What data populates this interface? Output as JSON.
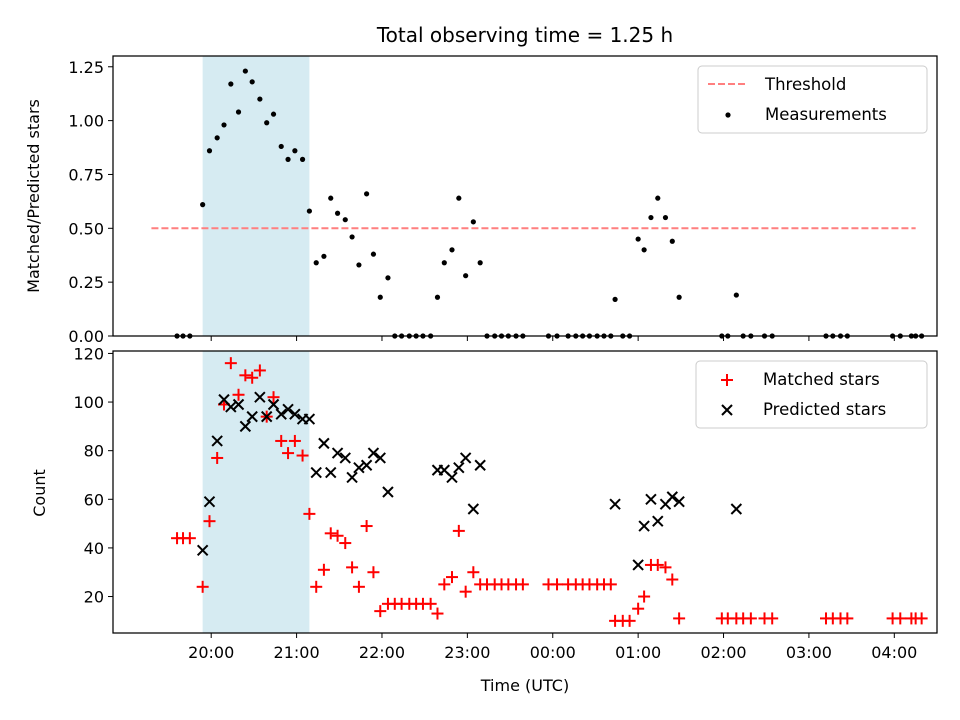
{
  "chart_data": [
    {
      "type": "scatter",
      "title": "Total observing time = 1.25 h",
      "ylabel": "Matched/Predicted stars",
      "xlabel": "",
      "x_range_hours": [
        18.85,
        28.5
      ],
      "ylim": [
        0,
        1.3
      ],
      "yticks": [
        0,
        0.25,
        0.5,
        0.75,
        1.0,
        1.25
      ],
      "ytick_labels": [
        "0.00",
        "0.25",
        "0.50",
        "0.75",
        "1.00",
        "1.25"
      ],
      "highlight_span": [
        19.9,
        21.15
      ],
      "highlight_color": "#add8e6",
      "grid": false,
      "legend_position": "upper right",
      "threshold": {
        "name": "Threshold",
        "y": 0.5,
        "x": [
          19.3,
          28.25
        ],
        "color": "#ff7f7f",
        "style": "dashed"
      },
      "series": [
        {
          "name": "Measurements",
          "color": "#000000",
          "marker": "dot",
          "x": [
            19.6,
            19.67,
            19.75,
            19.9,
            19.98,
            20.07,
            20.15,
            20.23,
            20.32,
            20.4,
            20.48,
            20.57,
            20.65,
            20.73,
            20.82,
            20.9,
            20.98,
            21.07,
            21.15,
            21.23,
            21.32,
            21.4,
            21.48,
            21.57,
            21.65,
            21.73,
            21.82,
            21.9,
            21.98,
            22.07,
            22.15,
            22.23,
            22.32,
            22.4,
            22.48,
            22.57,
            22.65,
            22.73,
            22.82,
            22.9,
            22.98,
            23.07,
            23.15,
            23.23,
            23.32,
            23.4,
            23.48,
            23.57,
            23.65,
            23.95,
            24.05,
            24.18,
            24.27,
            24.35,
            24.43,
            24.52,
            24.6,
            24.68,
            24.73,
            24.82,
            24.9,
            25.0,
            25.07,
            25.15,
            25.23,
            25.32,
            25.4,
            25.48,
            25.98,
            26.05,
            26.15,
            26.23,
            26.32,
            26.48,
            26.57,
            27.2,
            27.28,
            27.37,
            27.45,
            27.98,
            28.07,
            28.2,
            28.25,
            28.32
          ],
          "y": [
            0,
            0,
            0,
            0.61,
            0.86,
            0.92,
            0.98,
            1.17,
            1.04,
            1.23,
            1.18,
            1.1,
            0.99,
            1.03,
            0.88,
            0.82,
            0.86,
            0.82,
            0.58,
            0.34,
            0.37,
            0.64,
            0.57,
            0.54,
            0.46,
            0.33,
            0.66,
            0.38,
            0.18,
            0.27,
            0,
            0,
            0,
            0,
            0,
            0,
            0.18,
            0.34,
            0.4,
            0.64,
            0.28,
            0.53,
            0.34,
            0,
            0,
            0,
            0,
            0,
            0,
            0,
            0,
            0,
            0,
            0,
            0,
            0,
            0,
            0,
            0.17,
            0,
            0,
            0.45,
            0.4,
            0.55,
            0.64,
            0.55,
            0.44,
            0.18,
            0,
            0,
            0.19,
            0,
            0,
            0,
            0,
            0,
            0,
            0,
            0,
            0,
            0,
            0,
            0,
            0
          ]
        }
      ]
    },
    {
      "type": "scatter",
      "title": "",
      "ylabel": "Count",
      "xlabel": "Time (UTC)",
      "x_range_hours": [
        18.85,
        28.5
      ],
      "ylim": [
        5,
        121
      ],
      "yticks": [
        20,
        40,
        60,
        80,
        100,
        120
      ],
      "ytick_labels": [
        "20",
        "40",
        "60",
        "80",
        "100",
        "120"
      ],
      "xtick_hours": [
        20,
        21,
        22,
        23,
        24,
        25,
        26,
        27,
        28
      ],
      "xtick_labels": [
        "20:00",
        "21:00",
        "22:00",
        "23:00",
        "00:00",
        "01:00",
        "02:00",
        "03:00",
        "04:00"
      ],
      "highlight_span": [
        19.9,
        21.15
      ],
      "highlight_color": "#add8e6",
      "grid": false,
      "legend_position": "upper right",
      "series": [
        {
          "name": "Matched stars",
          "color": "#ff0000",
          "marker": "plus",
          "x": [
            19.6,
            19.67,
            19.75,
            19.9,
            19.98,
            20.07,
            20.15,
            20.23,
            20.32,
            20.4,
            20.48,
            20.57,
            20.65,
            20.73,
            20.82,
            20.9,
            20.98,
            21.07,
            21.15,
            21.23,
            21.32,
            21.4,
            21.48,
            21.57,
            21.65,
            21.73,
            21.82,
            21.9,
            21.98,
            22.07,
            22.15,
            22.23,
            22.32,
            22.4,
            22.48,
            22.57,
            22.65,
            22.73,
            22.82,
            22.9,
            22.98,
            23.07,
            23.15,
            23.23,
            23.32,
            23.4,
            23.48,
            23.57,
            23.65,
            23.95,
            24.05,
            24.18,
            24.27,
            24.35,
            24.43,
            24.52,
            24.6,
            24.68,
            24.73,
            24.82,
            24.9,
            25.0,
            25.07,
            25.15,
            25.23,
            25.32,
            25.4,
            25.48,
            25.98,
            26.05,
            26.15,
            26.23,
            26.32,
            26.48,
            26.57,
            27.2,
            27.28,
            27.37,
            27.45,
            27.98,
            28.07,
            28.2,
            28.25,
            28.32
          ],
          "y": [
            44,
            44,
            44,
            24,
            51,
            77,
            99,
            116,
            103,
            111,
            110,
            113,
            94,
            102,
            84,
            79,
            84,
            78,
            54,
            24,
            31,
            46,
            45,
            42,
            32,
            24,
            49,
            30,
            14,
            17,
            17,
            17,
            17,
            17,
            17,
            17,
            13,
            25,
            28,
            47,
            22,
            30,
            25,
            25,
            25,
            25,
            25,
            25,
            25,
            25,
            25,
            25,
            25,
            25,
            25,
            25,
            25,
            25,
            10,
            10,
            10,
            15,
            20,
            33,
            33,
            32,
            27,
            11,
            11,
            11,
            11,
            11,
            11,
            11,
            11,
            11,
            11,
            11,
            11,
            11,
            11,
            11,
            11,
            11
          ]
        },
        {
          "name": "Predicted stars",
          "color": "#000000",
          "marker": "x",
          "x": [
            19.9,
            19.98,
            20.07,
            20.15,
            20.23,
            20.32,
            20.4,
            20.48,
            20.57,
            20.65,
            20.73,
            20.82,
            20.9,
            20.98,
            21.07,
            21.15,
            21.23,
            21.32,
            21.4,
            21.48,
            21.57,
            21.65,
            21.73,
            21.82,
            21.9,
            21.98,
            22.07,
            22.65,
            22.73,
            22.82,
            22.9,
            22.98,
            23.07,
            23.15,
            24.73,
            25.0,
            25.07,
            25.15,
            25.23,
            25.32,
            25.4,
            25.48,
            26.15
          ],
          "y": [
            39,
            59,
            84,
            101,
            98,
            99,
            90,
            94,
            102,
            94,
            99,
            95,
            97,
            95,
            93,
            93,
            71,
            83,
            71,
            79,
            77,
            69,
            73,
            74,
            79,
            77,
            63,
            72,
            72,
            69,
            73,
            77,
            56,
            74,
            58,
            33,
            49,
            60,
            51,
            58,
            61,
            59,
            56
          ]
        }
      ]
    }
  ]
}
